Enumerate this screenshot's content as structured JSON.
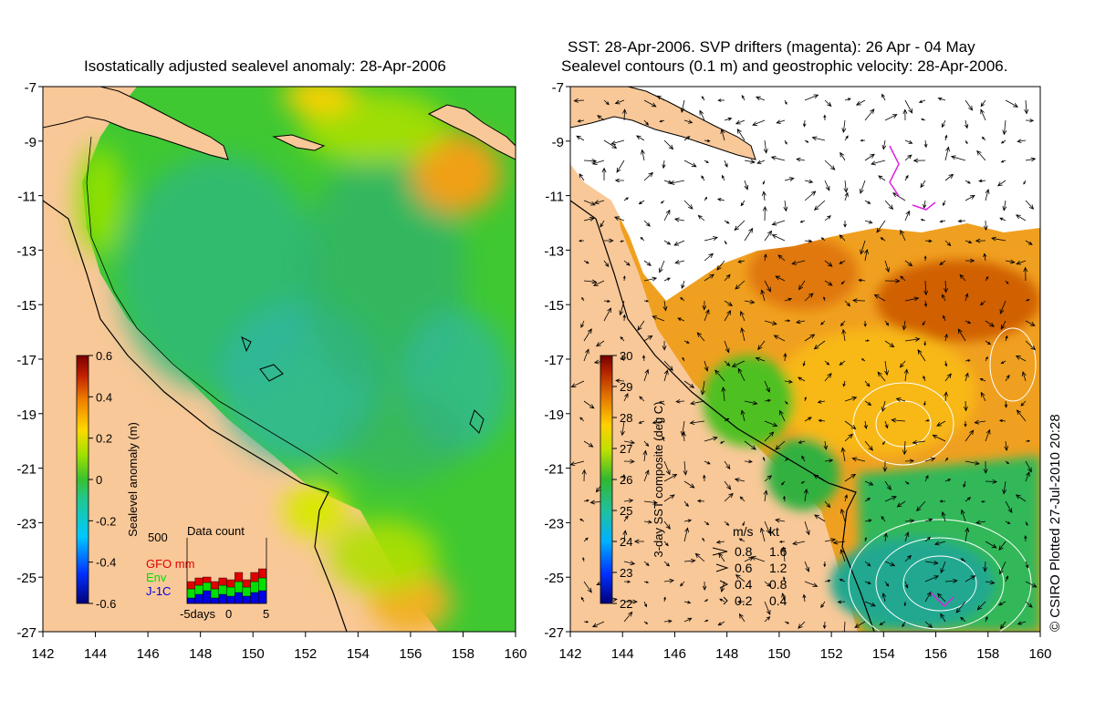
{
  "left_panel": {
    "title": "Isostatically adjusted sealevel anomaly: 28-Apr-2006",
    "colorbar": {
      "label": "Sealevel anomaly (m)",
      "ticks": [
        "0.6",
        "0.4",
        "0.2",
        "0",
        "-0.2",
        "-0.4",
        "-0.6"
      ],
      "min": -0.6,
      "max": 0.6
    },
    "data_count": {
      "title": "Data count",
      "ymax_label": "500",
      "legend": [
        {
          "name": "GFO mm",
          "color": "#e00000"
        },
        {
          "name": "Env",
          "color": "#00e000"
        },
        {
          "name": "J-1C",
          "color": "#0000e0"
        }
      ],
      "xlabels": [
        "-5days",
        "0",
        "5"
      ]
    }
  },
  "right_panel": {
    "title_line1": "SST: 28-Apr-2006. SVP drifters (magenta): 26 Apr - 04 May",
    "title_line2": "Sealevel contours (0.1 m) and geostrophic velocity: 28-Apr-2006.",
    "colorbar": {
      "label": "3-day SST composite (deg C)",
      "ticks": [
        "30",
        "29",
        "28",
        "27",
        "26",
        "25",
        "24",
        "23",
        "22"
      ],
      "min": 22,
      "max": 30
    },
    "velocity_legend": {
      "header_ms": "m/s",
      "header_kt": "kt",
      "rows": [
        {
          "ms": "0.8",
          "kt": "1.6"
        },
        {
          "ms": "0.6",
          "kt": "1.2"
        },
        {
          "ms": "0.4",
          "kt": "0.8"
        },
        {
          "ms": "0.2",
          "kt": "0.4"
        }
      ]
    }
  },
  "axes": {
    "lat_labels": [
      "-7",
      "-9",
      "-11",
      "-13",
      "-15",
      "-17",
      "-19",
      "-21",
      "-23",
      "-25",
      "-27"
    ],
    "lon_labels": [
      "142",
      "144",
      "146",
      "148",
      "150",
      "152",
      "154",
      "156",
      "158",
      "160"
    ]
  },
  "credit": "© CSIRO Plotted 27-Jul-2010 20:28",
  "colors": {
    "land": "#f9c898",
    "ocean_green": "#44cc30",
    "warm_orange": "#e08a18",
    "cloud": "#ffffff"
  }
}
